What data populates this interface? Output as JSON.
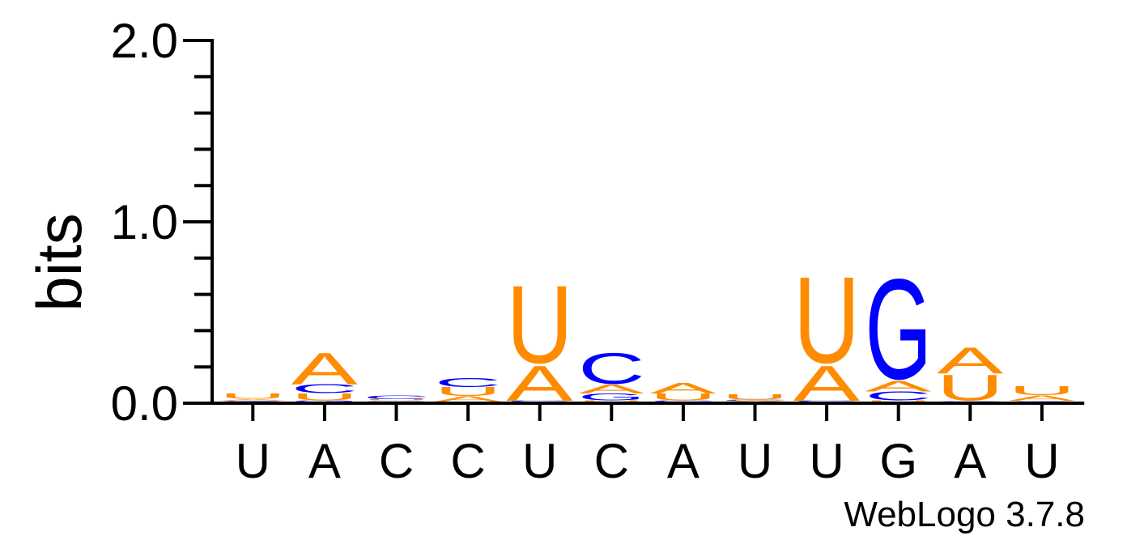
{
  "chart_data": {
    "type": "sequence-logo",
    "ylabel": "bits",
    "ylim": [
      0,
      2.0
    ],
    "yticks": [
      "0.0",
      "1.0",
      "2.0"
    ],
    "ytick_values": [
      0,
      1.0,
      2.0
    ],
    "yminor_step": 0.2,
    "x_tick_labels": [
      "U",
      "A",
      "C",
      "C",
      "U",
      "C",
      "A",
      "U",
      "U",
      "G",
      "A",
      "U"
    ],
    "credit": "WebLogo 3.7.8",
    "colors": {
      "A": "#FF8C00",
      "C": "#0000FF",
      "G": "#0000FF",
      "U": "#FF8C00"
    },
    "positions": [
      {
        "stack": [
          {
            "letter": "C",
            "bits": 0.002
          },
          {
            "letter": "G",
            "bits": 0.003
          },
          {
            "letter": "A",
            "bits": 0.01
          },
          {
            "letter": "U",
            "bits": 0.03
          }
        ]
      },
      {
        "stack": [
          {
            "letter": "G",
            "bits": 0.005
          },
          {
            "letter": "U",
            "bits": 0.04
          },
          {
            "letter": "C",
            "bits": 0.05
          },
          {
            "letter": "A",
            "bits": 0.18
          }
        ]
      },
      {
        "stack": [
          {
            "letter": "G",
            "bits": 0.002
          },
          {
            "letter": "A",
            "bits": 0.004
          },
          {
            "letter": "U",
            "bits": 0.006
          },
          {
            "letter": "C",
            "bits": 0.02
          }
        ]
      },
      {
        "stack": [
          {
            "letter": "A",
            "bits": 0.03
          },
          {
            "letter": "U",
            "bits": 0.05
          },
          {
            "letter": "C",
            "bits": 0.05
          }
        ]
      },
      {
        "stack": [
          {
            "letter": "C",
            "bits": 0.005
          },
          {
            "letter": "A",
            "bits": 0.2
          },
          {
            "letter": "U",
            "bits": 0.45
          }
        ]
      },
      {
        "stack": [
          {
            "letter": "U",
            "bits": 0.005
          },
          {
            "letter": "G",
            "bits": 0.04
          },
          {
            "letter": "A",
            "bits": 0.05
          },
          {
            "letter": "C",
            "bits": 0.18
          }
        ]
      },
      {
        "stack": [
          {
            "letter": "C",
            "bits": 0.005
          },
          {
            "letter": "U",
            "bits": 0.04
          },
          {
            "letter": "A",
            "bits": 0.06
          }
        ]
      },
      {
        "stack": [
          {
            "letter": "A",
            "bits": 0.005
          },
          {
            "letter": "C",
            "bits": 0.005
          },
          {
            "letter": "U",
            "bits": 0.03
          }
        ]
      },
      {
        "stack": [
          {
            "letter": "C",
            "bits": 0.005
          },
          {
            "letter": "A",
            "bits": 0.2
          },
          {
            "letter": "U",
            "bits": 0.5
          }
        ]
      },
      {
        "stack": [
          {
            "letter": "U",
            "bits": 0.005
          },
          {
            "letter": "C",
            "bits": 0.05
          },
          {
            "letter": "A",
            "bits": 0.06
          },
          {
            "letter": "G",
            "bits": 0.58
          }
        ]
      },
      {
        "stack": [
          {
            "letter": "C",
            "bits": 0.004
          },
          {
            "letter": "U",
            "bits": 0.15
          },
          {
            "letter": "A",
            "bits": 0.15
          }
        ]
      },
      {
        "stack": [
          {
            "letter": "C",
            "bits": 0.004
          },
          {
            "letter": "A",
            "bits": 0.03
          },
          {
            "letter": "U",
            "bits": 0.05
          }
        ]
      }
    ]
  }
}
